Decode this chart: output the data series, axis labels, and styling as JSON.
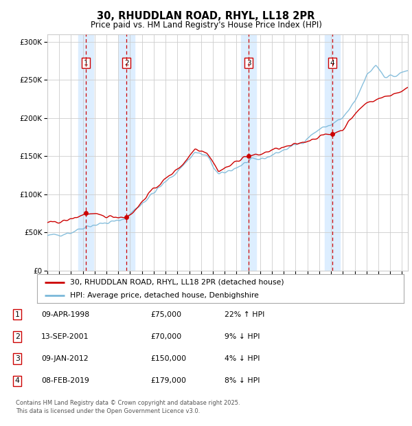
{
  "title": "30, RHUDDLAN ROAD, RHYL, LL18 2PR",
  "subtitle": "Price paid vs. HM Land Registry's House Price Index (HPI)",
  "ytick_values": [
    0,
    50000,
    100000,
    150000,
    200000,
    250000,
    300000
  ],
  "ylim": [
    0,
    310000
  ],
  "xlim_start": 1995.0,
  "xlim_end": 2025.5,
  "sale_dates": [
    1998.27,
    2001.7,
    2012.03,
    2019.1
  ],
  "sale_prices": [
    75000,
    70000,
    150000,
    179000
  ],
  "sale_labels": [
    "1",
    "2",
    "3",
    "4"
  ],
  "legend_line1": "30, RHUDDLAN ROAD, RHYL, LL18 2PR (detached house)",
  "legend_line2": "HPI: Average price, detached house, Denbighshire",
  "table_rows": [
    [
      "1",
      "09-APR-1998",
      "£75,000",
      "22% ↑ HPI"
    ],
    [
      "2",
      "13-SEP-2001",
      "£70,000",
      "9% ↓ HPI"
    ],
    [
      "3",
      "09-JAN-2012",
      "£150,000",
      "4% ↓ HPI"
    ],
    [
      "4",
      "08-FEB-2019",
      "£179,000",
      "8% ↓ HPI"
    ]
  ],
  "footnote": "Contains HM Land Registry data © Crown copyright and database right 2025.\nThis data is licensed under the Open Government Licence v3.0.",
  "red_color": "#cc0000",
  "blue_color": "#7ab8d9",
  "shade_color": "#ddeeff",
  "grid_color": "#cccccc",
  "background_color": "#ffffff",
  "hpi_anchors_t": [
    1995.0,
    1997.0,
    1998.27,
    2001.0,
    2001.7,
    2003.5,
    2006.0,
    2007.5,
    2008.5,
    2009.5,
    2011.0,
    2012.03,
    2013.5,
    2015.0,
    2016.5,
    2018.0,
    2019.1,
    2020.0,
    2021.0,
    2022.0,
    2022.8,
    2023.5,
    2024.5,
    2025.5
  ],
  "hpi_anchors_v": [
    45000,
    50000,
    58000,
    65000,
    70000,
    95000,
    130000,
    155000,
    150000,
    125000,
    135000,
    143000,
    148000,
    158000,
    168000,
    185000,
    192000,
    200000,
    220000,
    255000,
    270000,
    255000,
    255000,
    263000
  ],
  "red_anchors_t": [
    1995.0,
    1996.5,
    1997.5,
    1998.27,
    1999.0,
    2000.0,
    2001.7,
    2002.5,
    2003.5,
    2005.0,
    2006.5,
    2007.5,
    2008.5,
    2009.5,
    2010.5,
    2011.5,
    2012.03,
    2013.0,
    2014.0,
    2015.5,
    2017.0,
    2018.5,
    2019.1,
    2020.0,
    2021.0,
    2022.0,
    2023.0,
    2024.0,
    2025.5
  ],
  "red_anchors_v": [
    62000,
    65000,
    70000,
    75000,
    73000,
    71000,
    70000,
    80000,
    100000,
    120000,
    140000,
    160000,
    155000,
    130000,
    138000,
    148000,
    150000,
    152000,
    158000,
    163000,
    170000,
    178000,
    179000,
    185000,
    205000,
    220000,
    225000,
    230000,
    238000
  ]
}
